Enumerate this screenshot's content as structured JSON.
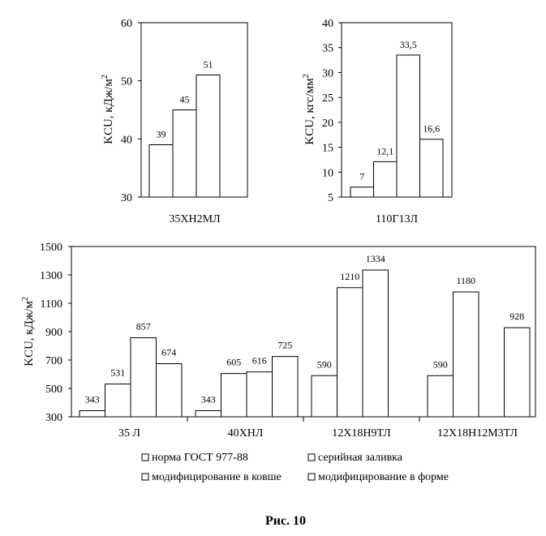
{
  "chart_data": [
    {
      "type": "bar",
      "ylabel": "KCU, кДж/м2",
      "ylabel_main": "KCU, кДж/м",
      "ylabel_sup": "2",
      "ylim": [
        30,
        60
      ],
      "yticks": [
        30,
        40,
        50,
        60
      ],
      "categories": [
        "35ХН2МЛ"
      ],
      "values": [
        39,
        45,
        51
      ],
      "labels": [
        "39",
        "45",
        "51"
      ]
    },
    {
      "type": "bar",
      "ylabel": "KCU, кгс/мм2",
      "ylabel_main": "KCU, кгс/мм",
      "ylabel_sup": "2",
      "ylim": [
        5,
        40
      ],
      "yticks": [
        5,
        10,
        15,
        20,
        25,
        30,
        35,
        40
      ],
      "categories": [
        "110Г13Л"
      ],
      "values": [
        7,
        12.1,
        33.5,
        16.6
      ],
      "labels": [
        "7",
        "12,1",
        "33,5",
        "16,6"
      ]
    },
    {
      "type": "bar",
      "ylabel": "KCU, кДж/м2",
      "ylabel_main": "KCU, кДж/м",
      "ylabel_sup": "2",
      "ylim": [
        300,
        1500
      ],
      "yticks": [
        300,
        500,
        700,
        900,
        1100,
        1300,
        1500
      ],
      "categories": [
        "35 Л",
        "40ХНЛ",
        "12Х18Н9ТЛ",
        "12Х18Н12М3ТЛ"
      ],
      "series": [
        {
          "name": "норма ГОСТ 977-88",
          "values": [
            343,
            343,
            590,
            590
          ],
          "labels": [
            "343",
            "343",
            "590",
            "590"
          ]
        },
        {
          "name": "серийная заливка",
          "values": [
            531,
            605,
            1210,
            1180
          ],
          "labels": [
            "531",
            "605",
            "1210",
            "1180"
          ]
        },
        {
          "name": "модифицирование в ковше",
          "values": [
            857,
            616,
            1334,
            null
          ],
          "labels": [
            "857",
            "616",
            "1334",
            ""
          ]
        },
        {
          "name": "модифицирование в форме",
          "values": [
            674,
            725,
            null,
            928
          ],
          "labels": [
            "674",
            "725",
            "",
            "928"
          ]
        }
      ],
      "legend": [
        "норма ГОСТ 977-88",
        "серийная заливка",
        "модифицирование в ковше",
        "модифицирование в форме"
      ]
    }
  ],
  "caption": "Рис. 10"
}
